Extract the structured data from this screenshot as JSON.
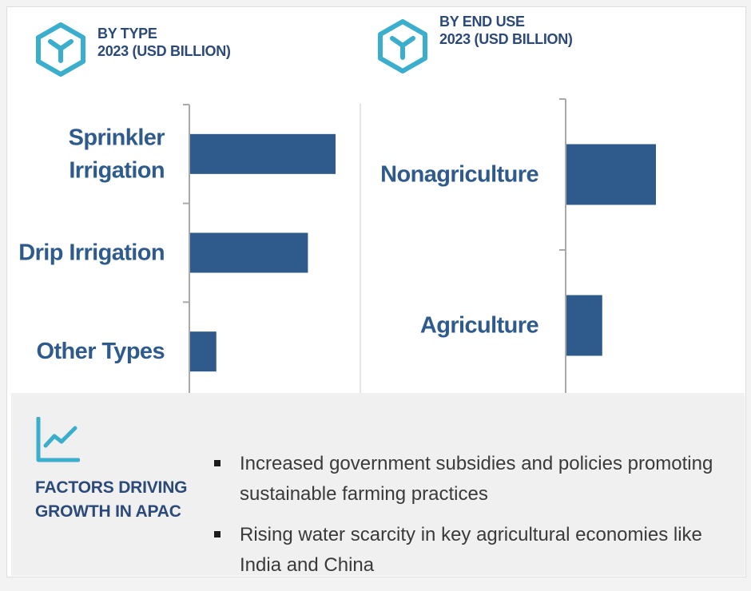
{
  "colors": {
    "bar": "#2f5b8c",
    "label": "#2f5b8c",
    "heading": "#2b4a7a",
    "icon": "#3aaecc",
    "axis": "#a9a9a9"
  },
  "panels": [
    {
      "icon": "hex-y-icon",
      "title": "BY TYPE",
      "subtitle": "2023 (USD BILLION)"
    },
    {
      "icon": "hex-y-icon",
      "title": "BY END USE",
      "subtitle": "2023 (USD BILLION)"
    }
  ],
  "chart_data": [
    {
      "type": "bar",
      "orientation": "horizontal",
      "title": "BY TYPE",
      "subtitle": "2023 (USD BILLION)",
      "categories": [
        "Sprinkler Irrigation",
        "Drip Irrigation",
        "Other Types"
      ],
      "category_lines": [
        [
          "Sprinkler",
          "Irrigation"
        ],
        [
          "Drip Irrigation"
        ],
        [
          "Other Types"
        ]
      ],
      "values": [
        1.0,
        0.81,
        0.18
      ],
      "value_unit": "relative (no axis scale shown)",
      "xlim": [
        0,
        1.0
      ],
      "grid": false,
      "legend": "none"
    },
    {
      "type": "bar",
      "orientation": "horizontal",
      "title": "BY END USE",
      "subtitle": "2023 (USD BILLION)",
      "categories": [
        "Nonagriculture",
        "Agriculture"
      ],
      "category_lines": [
        [
          "Nonagriculture"
        ],
        [
          "Agriculture"
        ]
      ],
      "values": [
        1.0,
        0.4
      ],
      "value_unit": "relative (no axis scale shown)",
      "xlim": [
        0,
        1.0
      ],
      "grid": false,
      "legend": "none"
    }
  ],
  "factors": {
    "icon": "trend-chart-icon",
    "title": "FACTORS DRIVING\nGROWTH IN APAC",
    "bullets": [
      "Increased government subsidies and policies promoting sustainable farming practices",
      "Rising water scarcity in key agricultural economies like India and China"
    ]
  }
}
